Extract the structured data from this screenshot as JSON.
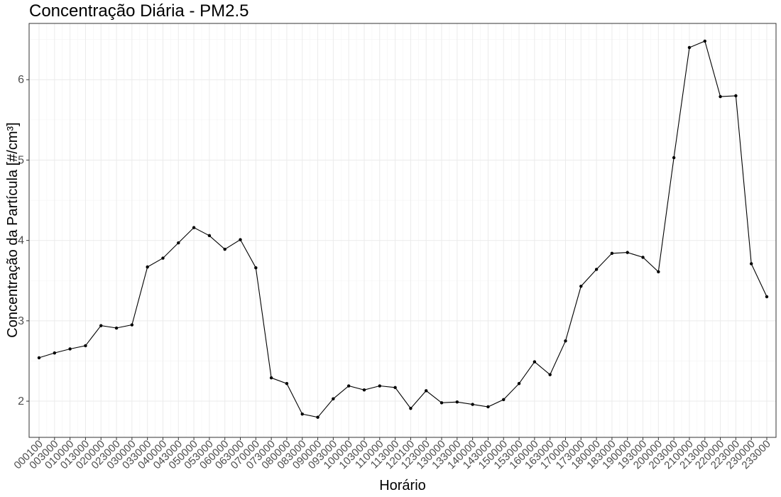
{
  "chart_data": {
    "type": "line",
    "title": "Concentração Diária - PM2.5",
    "xlabel": "Horário",
    "ylabel": "Concentração da Partícula [#/cm³]",
    "ylim": [
      1.55,
      6.7
    ],
    "yticks": [
      2,
      3,
      4,
      5,
      6
    ],
    "grid": true,
    "legend": "none",
    "line_color": "#000000",
    "x": [
      "000100",
      "003000",
      "010000",
      "013000",
      "020000",
      "023000",
      "030000",
      "033000",
      "040000",
      "043000",
      "050000",
      "053000",
      "060000",
      "063000",
      "070000",
      "073000",
      "080000",
      "083000",
      "090000",
      "093000",
      "100000",
      "103000",
      "110000",
      "113000",
      "120100",
      "123000",
      "130000",
      "133000",
      "140000",
      "143000",
      "150000",
      "153000",
      "160000",
      "163000",
      "170000",
      "173000",
      "180000",
      "183000",
      "190000",
      "193000",
      "200000",
      "203000",
      "210000",
      "213000",
      "220000",
      "223000",
      "230000",
      "233000"
    ],
    "values": [
      2.54,
      2.6,
      2.65,
      2.69,
      2.94,
      2.91,
      2.95,
      3.67,
      3.78,
      3.97,
      4.16,
      4.06,
      3.89,
      4.01,
      3.66,
      2.29,
      2.22,
      1.84,
      1.8,
      2.03,
      2.19,
      2.14,
      2.19,
      2.17,
      1.91,
      2.13,
      1.98,
      1.99,
      1.96,
      1.93,
      2.02,
      2.22,
      2.49,
      2.33,
      2.75,
      3.43,
      3.64,
      3.84,
      3.85,
      3.79,
      3.61,
      5.03,
      6.4,
      6.48,
      5.79,
      5.8,
      3.71,
      3.3
    ]
  }
}
